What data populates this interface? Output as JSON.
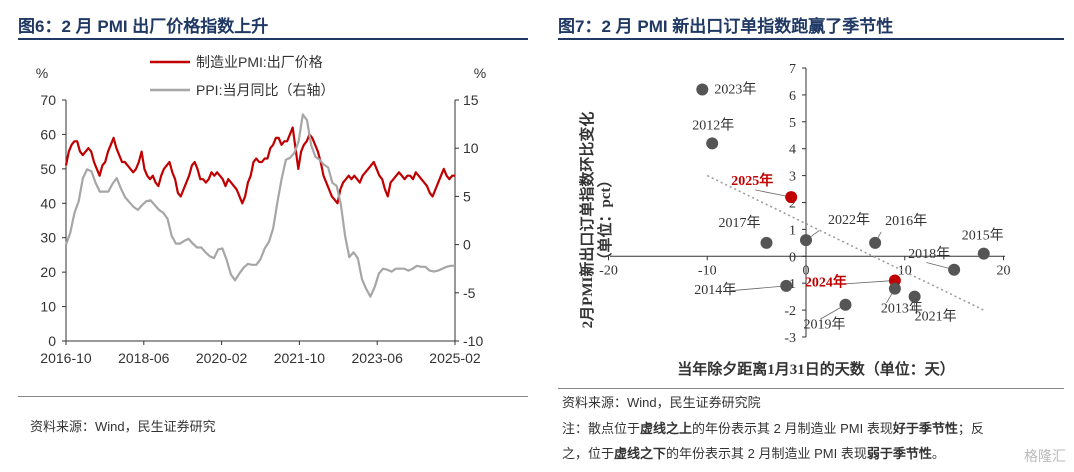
{
  "left": {
    "title": "图6：2 月 PMI 出厂价格指数上升",
    "source": "资料来源：Wind，民生证券研究",
    "chart_data": {
      "type": "line",
      "y_unit_left": "%",
      "y_unit_right": "%",
      "ylim_left": [
        0,
        70
      ],
      "ylim_right": [
        -10,
        15
      ],
      "yticks_left": [
        "0",
        "10",
        "20",
        "30",
        "40",
        "50",
        "60",
        "70"
      ],
      "yticks_right": [
        "-10",
        "-5",
        "0",
        "5",
        "10",
        "15"
      ],
      "xticks": [
        "2016-10",
        "2018-06",
        "2020-02",
        "2021-10",
        "2023-06",
        "2025-02"
      ],
      "legend": "top-center",
      "series": [
        {
          "name": "制造业PMI:出厂价格",
          "axis": "left",
          "color": "#c00000",
          "values": [
            51,
            55,
            57,
            58,
            58,
            55,
            54,
            55,
            56,
            55,
            52,
            50,
            48,
            51,
            52,
            55,
            57,
            59,
            56,
            54,
            52,
            52,
            51,
            50,
            49,
            50,
            52,
            55,
            50,
            48,
            47,
            48,
            46,
            45,
            48,
            50,
            51,
            52,
            49,
            47,
            43,
            42,
            44,
            46,
            48,
            51,
            52,
            50,
            47,
            47,
            46,
            47,
            49,
            48,
            49,
            48,
            47,
            45,
            47,
            46,
            45,
            44,
            42,
            40,
            42,
            46,
            48,
            52,
            53,
            52,
            52,
            53,
            53,
            56,
            57,
            59,
            59,
            57,
            58,
            58,
            60,
            62,
            56,
            50,
            55,
            57,
            58,
            60,
            59,
            57,
            55,
            52,
            48,
            46,
            44,
            42,
            41,
            40,
            44,
            46,
            47,
            48,
            47,
            48,
            47,
            46,
            48,
            49,
            50,
            51,
            52,
            50,
            48,
            47,
            44,
            42,
            46,
            47,
            48,
            49,
            48,
            47,
            48,
            48,
            47,
            49,
            48,
            47,
            46,
            45,
            43,
            42,
            44,
            46,
            48,
            50,
            48,
            47,
            48,
            48
          ]
        },
        {
          "name": "PPI:当月同比（右轴）",
          "axis": "right",
          "color": "#a6a6a6",
          "values": [
            0.0,
            1.2,
            3.3,
            4.5,
            6.9,
            7.8,
            7.6,
            6.4,
            5.5,
            5.5,
            5.5,
            6.3,
            6.9,
            5.8,
            4.9,
            4.4,
            3.9,
            3.6,
            4.1,
            4.5,
            4.6,
            4.1,
            3.6,
            3.3,
            2.7,
            0.9,
            0.1,
            0.1,
            0.4,
            0.6,
            0.1,
            -0.3,
            -0.3,
            -0.8,
            -1.2,
            -1.4,
            -0.5,
            -0.4,
            -1.6,
            -3.1,
            -3.7,
            -3.0,
            -2.4,
            -2.0,
            -2.1,
            -2.1,
            -1.5,
            -0.4,
            0.3,
            1.7,
            4.4,
            6.8,
            8.8,
            9.0,
            9.5,
            10.7,
            13.5,
            12.9,
            10.3,
            9.1,
            8.8,
            8.3,
            8.0,
            6.4,
            6.1,
            4.2,
            0.9,
            -1.3,
            -0.8,
            -1.4,
            -3.6,
            -4.6,
            -5.4,
            -4.4,
            -3.0,
            -2.5,
            -2.6,
            -2.8,
            -2.5,
            -2.5,
            -2.5,
            -2.7,
            -2.5,
            -2.2,
            -2.3,
            -2.3,
            -2.7,
            -2.8,
            -2.7,
            -2.5,
            -2.3,
            -2.2,
            -2.2
          ]
        }
      ]
    }
  },
  "right": {
    "title": "图7：2 月 PMI 新出口订单指数跑赢了季节性",
    "ylabel_line1": "2月PMI新出口订单指数环比变化",
    "ylabel_line2": "（单位：pct）",
    "xlabel": "当年除夕距离1月31日的天数（单位：天）",
    "source": "资料来源：Wind，民生证券研究院",
    "note1_a": "注：散点位于",
    "note1_b": "虚线之上",
    "note1_c": "的年份表示其 2 月制造业 PMI 表现",
    "note1_d": "好于季节性",
    "note1_e": "；反",
    "note2_a": "之，位于",
    "note2_b": "虚线之下",
    "note2_c": "的年份表示其 2 月制造业 PMI 表现",
    "note2_d": "弱于季节性",
    "note2_e": "。",
    "chart_data": {
      "type": "scatter",
      "xlim": [
        -20,
        20
      ],
      "ylim": [
        -3,
        7
      ],
      "xticks": [
        "-20",
        "-10",
        "0",
        "10",
        "20"
      ],
      "yticks": [
        "-3",
        "-2",
        "-1",
        "0",
        "1",
        "2",
        "3",
        "4",
        "5",
        "6",
        "7"
      ],
      "trendline": {
        "from": [
          -10,
          3
        ],
        "to": [
          18,
          -2
        ]
      },
      "points": [
        {
          "label": "2023年",
          "x": -10.5,
          "y": 6.2,
          "highlight": false
        },
        {
          "label": "2012年",
          "x": -9.5,
          "y": 4.2,
          "highlight": false
        },
        {
          "label": "2025年",
          "x": -1.5,
          "y": 2.2,
          "highlight": true
        },
        {
          "label": "2017年",
          "x": -4,
          "y": 0.5,
          "highlight": false
        },
        {
          "label": "2022年",
          "x": 0,
          "y": 0.6,
          "highlight": false
        },
        {
          "label": "2016年",
          "x": 7,
          "y": 0.5,
          "highlight": false
        },
        {
          "label": "2015年",
          "x": 18,
          "y": 0.1,
          "highlight": false
        },
        {
          "label": "2018年",
          "x": 15,
          "y": -0.5,
          "highlight": false
        },
        {
          "label": "2024年",
          "x": 9,
          "y": -0.9,
          "highlight": true
        },
        {
          "label": "2013年",
          "x": 9,
          "y": -1.2,
          "highlight": false
        },
        {
          "label": "2021年",
          "x": 11,
          "y": -1.5,
          "highlight": false
        },
        {
          "label": "2019年",
          "x": 4,
          "y": -1.8,
          "highlight": false
        },
        {
          "label": "2014年",
          "x": -2,
          "y": -1.1,
          "highlight": false
        }
      ]
    }
  },
  "watermark": "格隆汇"
}
